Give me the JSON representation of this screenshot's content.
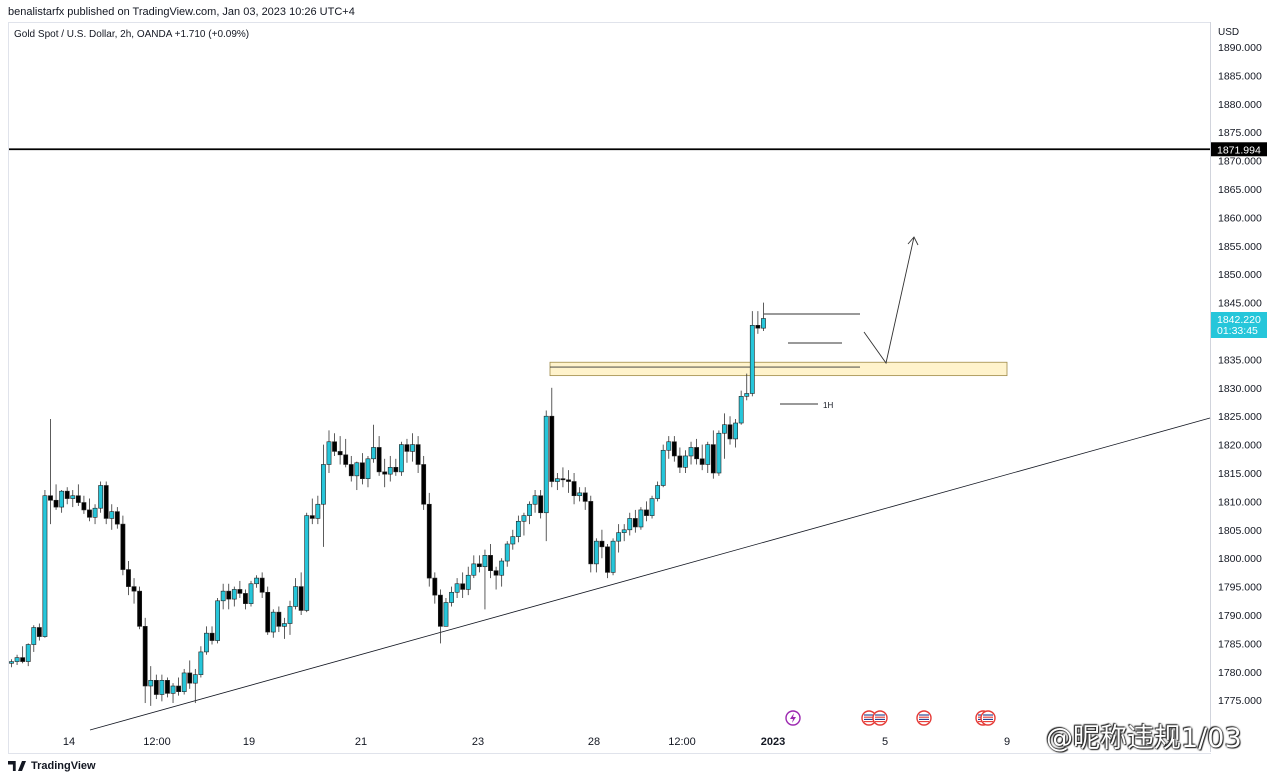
{
  "header": "benalistarfx published on TradingView.com, Jan 03, 2023 10:26 UTC+4",
  "symbol_line": "Gold Spot / U.S. Dollar, 2h, OANDA  +1.710 (+0.09%)",
  "axis_currency": "USD",
  "footer_brand": "TradingView",
  "watermark": "@昵称违规1/03",
  "colors": {
    "up": "#26c6da",
    "down": "#000000",
    "price_tag_bg": "#26c6da",
    "level_tag_bg": "#000000",
    "zone_fill": "#fff3cc",
    "zone_border": "#9e8a4a"
  },
  "chart_data": {
    "type": "candlestick",
    "title": "Gold Spot / U.S. Dollar, 2h, OANDA",
    "change_label": "+1.710 (+0.09%)",
    "ylim": [
      1771.5,
      1893.5
    ],
    "price_ticks": [
      "1890.000",
      "1885.000",
      "1880.000",
      "1875.000",
      "1870.000",
      "1865.000",
      "1860.000",
      "1855.000",
      "1850.000",
      "1845.000",
      "1840.000",
      "1835.000",
      "1830.000",
      "1825.000",
      "1820.000",
      "1815.000",
      "1810.000",
      "1805.000",
      "1800.000",
      "1795.000",
      "1790.000",
      "1785.000",
      "1780.000",
      "1775.000"
    ],
    "time_ticks": [
      "14",
      "12:00",
      "19",
      "21",
      "23",
      "28",
      "12:00",
      "2023",
      "5",
      "9"
    ],
    "last_price": "1842.220",
    "countdown": "01:33:45",
    "horizontal_level": "1871.994",
    "annotation_label": "1H",
    "event_icons": [
      "lightning-icon",
      "us-flag-icon",
      "us-flag-icon",
      "us-flag-icon",
      "us-flag-icon",
      "us-flag-icon"
    ],
    "candles": [
      [
        1781.5,
        1782.2,
        1780.8,
        1781.8
      ],
      [
        1781.8,
        1783.0,
        1781.2,
        1782.5
      ],
      [
        1782.5,
        1784.5,
        1781.5,
        1781.8
      ],
      [
        1781.8,
        1785.0,
        1781.0,
        1784.8
      ],
      [
        1784.8,
        1788.2,
        1783.5,
        1787.8
      ],
      [
        1787.8,
        1788.5,
        1785.5,
        1786.2
      ],
      [
        1786.2,
        1812.0,
        1786.0,
        1811.0
      ],
      [
        1811.0,
        1824.5,
        1806.0,
        1810.2
      ],
      [
        1810.2,
        1813.0,
        1808.5,
        1809.0
      ],
      [
        1809.0,
        1812.0,
        1808.0,
        1811.8
      ],
      [
        1811.8,
        1812.5,
        1809.5,
        1810.5
      ],
      [
        1810.5,
        1812.0,
        1809.0,
        1811.0
      ],
      [
        1811.0,
        1813.0,
        1809.2,
        1809.8
      ],
      [
        1809.8,
        1811.0,
        1807.8,
        1808.5
      ],
      [
        1808.5,
        1810.5,
        1806.5,
        1807.2
      ],
      [
        1807.2,
        1809.5,
        1806.0,
        1808.8
      ],
      [
        1808.8,
        1813.5,
        1808.0,
        1812.8
      ],
      [
        1812.8,
        1813.5,
        1806.0,
        1807.0
      ],
      [
        1807.0,
        1809.5,
        1805.0,
        1808.2
      ],
      [
        1808.2,
        1809.0,
        1805.2,
        1806.0
      ],
      [
        1806.0,
        1807.5,
        1797.0,
        1798.0
      ],
      [
        1798.0,
        1799.5,
        1793.5,
        1795.0
      ],
      [
        1795.0,
        1796.5,
        1792.0,
        1794.2
      ],
      [
        1794.2,
        1795.0,
        1787.5,
        1788.0
      ],
      [
        1788.0,
        1789.5,
        1774.5,
        1777.5
      ],
      [
        1777.5,
        1781.0,
        1774.0,
        1778.5
      ],
      [
        1778.5,
        1779.5,
        1775.2,
        1776.0
      ],
      [
        1776.0,
        1779.5,
        1774.8,
        1778.5
      ],
      [
        1778.5,
        1779.0,
        1775.5,
        1776.2
      ],
      [
        1776.2,
        1778.0,
        1774.5,
        1777.5
      ],
      [
        1777.5,
        1779.0,
        1775.8,
        1776.5
      ],
      [
        1776.5,
        1780.5,
        1776.0,
        1779.8
      ],
      [
        1779.8,
        1782.0,
        1777.0,
        1778.0
      ],
      [
        1778.0,
        1780.5,
        1774.5,
        1779.5
      ],
      [
        1779.5,
        1784.5,
        1779.0,
        1783.5
      ],
      [
        1783.5,
        1788.0,
        1783.0,
        1786.8
      ],
      [
        1786.8,
        1788.0,
        1784.8,
        1785.5
      ],
      [
        1785.5,
        1793.0,
        1785.0,
        1792.5
      ],
      [
        1792.5,
        1795.5,
        1791.0,
        1794.2
      ],
      [
        1794.2,
        1795.5,
        1791.0,
        1792.8
      ],
      [
        1792.8,
        1795.0,
        1791.5,
        1794.5
      ],
      [
        1794.5,
        1796.0,
        1793.0,
        1793.8
      ],
      [
        1793.8,
        1794.5,
        1791.0,
        1792.0
      ],
      [
        1792.0,
        1796.0,
        1791.5,
        1795.5
      ],
      [
        1795.5,
        1797.0,
        1794.8,
        1796.5
      ],
      [
        1796.5,
        1797.5,
        1793.0,
        1794.0
      ],
      [
        1794.0,
        1795.0,
        1786.5,
        1787.0
      ],
      [
        1787.0,
        1791.0,
        1786.0,
        1790.5
      ],
      [
        1790.5,
        1791.5,
        1787.0,
        1788.0
      ],
      [
        1788.0,
        1789.5,
        1785.8,
        1788.5
      ],
      [
        1788.5,
        1792.5,
        1786.5,
        1791.5
      ],
      [
        1791.5,
        1796.5,
        1791.0,
        1795.0
      ],
      [
        1795.0,
        1797.5,
        1790.0,
        1790.8
      ],
      [
        1790.8,
        1808.0,
        1790.5,
        1807.5
      ],
      [
        1807.5,
        1810.5,
        1806.0,
        1807.0
      ],
      [
        1807.0,
        1811.0,
        1806.0,
        1809.5
      ],
      [
        1809.5,
        1820.0,
        1802.0,
        1816.5
      ],
      [
        1816.5,
        1822.5,
        1815.0,
        1820.5
      ],
      [
        1820.5,
        1822.0,
        1818.0,
        1818.8
      ],
      [
        1818.8,
        1821.5,
        1816.5,
        1818.2
      ],
      [
        1818.2,
        1821.0,
        1816.0,
        1816.5
      ],
      [
        1816.5,
        1818.0,
        1813.5,
        1814.5
      ],
      [
        1814.5,
        1817.0,
        1812.0,
        1816.8
      ],
      [
        1816.8,
        1818.5,
        1813.0,
        1814.0
      ],
      [
        1814.0,
        1818.0,
        1812.5,
        1817.5
      ],
      [
        1817.5,
        1823.5,
        1816.8,
        1819.5
      ],
      [
        1819.5,
        1821.5,
        1814.5,
        1815.2
      ],
      [
        1815.2,
        1817.5,
        1812.5,
        1814.8
      ],
      [
        1814.8,
        1818.0,
        1813.5,
        1816.0
      ],
      [
        1816.0,
        1817.5,
        1814.5,
        1815.2
      ],
      [
        1815.2,
        1820.5,
        1814.5,
        1820.0
      ],
      [
        1820.0,
        1821.0,
        1816.8,
        1818.8
      ],
      [
        1818.8,
        1822.0,
        1817.0,
        1820.0
      ],
      [
        1820.0,
        1821.5,
        1815.0,
        1816.5
      ],
      [
        1816.5,
        1818.0,
        1808.5,
        1809.5
      ],
      [
        1809.5,
        1811.5,
        1795.0,
        1796.5
      ],
      [
        1796.5,
        1797.5,
        1792.0,
        1793.5
      ],
      [
        1793.5,
        1794.5,
        1785.0,
        1788.0
      ],
      [
        1788.0,
        1793.0,
        1788.0,
        1792.2
      ],
      [
        1792.2,
        1795.0,
        1791.5,
        1794.0
      ],
      [
        1794.0,
        1796.5,
        1793.0,
        1795.5
      ],
      [
        1795.5,
        1797.5,
        1793.0,
        1794.5
      ],
      [
        1794.5,
        1798.5,
        1793.5,
        1797.0
      ],
      [
        1797.0,
        1800.5,
        1796.5,
        1799.0
      ],
      [
        1799.0,
        1800.5,
        1797.5,
        1798.5
      ],
      [
        1798.5,
        1801.5,
        1791.0,
        1800.5
      ],
      [
        1800.5,
        1802.5,
        1796.5,
        1797.8
      ],
      [
        1797.8,
        1798.5,
        1794.5,
        1797.0
      ],
      [
        1797.0,
        1800.0,
        1795.0,
        1799.5
      ],
      [
        1799.5,
        1803.0,
        1798.5,
        1802.5
      ],
      [
        1802.5,
        1805.0,
        1801.5,
        1803.8
      ],
      [
        1803.8,
        1807.5,
        1802.8,
        1806.5
      ],
      [
        1806.5,
        1808.0,
        1804.0,
        1807.5
      ],
      [
        1807.5,
        1810.0,
        1806.0,
        1809.5
      ],
      [
        1809.5,
        1812.0,
        1808.0,
        1811.0
      ],
      [
        1811.0,
        1812.0,
        1807.0,
        1808.0
      ],
      [
        1808.0,
        1826.0,
        1803.0,
        1825.0
      ],
      [
        1825.0,
        1830.0,
        1812.5,
        1813.5
      ],
      [
        1813.5,
        1815.0,
        1812.0,
        1814.0
      ],
      [
        1814.0,
        1816.0,
        1812.5,
        1813.8
      ],
      [
        1813.8,
        1815.5,
        1811.5,
        1813.5
      ],
      [
        1813.5,
        1815.0,
        1809.5,
        1811.0
      ],
      [
        1811.0,
        1812.5,
        1810.0,
        1811.5
      ],
      [
        1811.5,
        1812.5,
        1808.5,
        1810.0
      ],
      [
        1810.0,
        1811.0,
        1797.5,
        1799.0
      ],
      [
        1799.0,
        1803.5,
        1797.5,
        1803.0
      ],
      [
        1803.0,
        1805.0,
        1800.0,
        1802.0
      ],
      [
        1802.0,
        1802.5,
        1796.5,
        1797.5
      ],
      [
        1797.5,
        1803.5,
        1797.0,
        1803.0
      ],
      [
        1803.0,
        1806.0,
        1801.0,
        1804.5
      ],
      [
        1804.5,
        1806.0,
        1803.0,
        1805.0
      ],
      [
        1805.0,
        1808.0,
        1804.0,
        1807.0
      ],
      [
        1807.0,
        1808.5,
        1804.5,
        1805.5
      ],
      [
        1805.5,
        1809.0,
        1805.0,
        1808.5
      ],
      [
        1808.5,
        1810.0,
        1806.5,
        1807.5
      ],
      [
        1807.5,
        1811.0,
        1807.0,
        1810.5
      ],
      [
        1810.5,
        1813.5,
        1810.0,
        1812.8
      ],
      [
        1812.8,
        1820.0,
        1812.5,
        1819.0
      ],
      [
        1819.0,
        1821.5,
        1817.5,
        1820.5
      ],
      [
        1820.5,
        1821.5,
        1817.0,
        1818.0
      ],
      [
        1818.0,
        1819.5,
        1815.0,
        1816.0
      ],
      [
        1816.0,
        1819.0,
        1815.0,
        1818.0
      ],
      [
        1818.0,
        1820.5,
        1816.5,
        1819.5
      ],
      [
        1819.5,
        1821.0,
        1816.5,
        1817.5
      ],
      [
        1817.5,
        1820.0,
        1815.5,
        1816.5
      ],
      [
        1816.5,
        1820.5,
        1815.0,
        1820.0
      ],
      [
        1820.0,
        1822.5,
        1814.0,
        1815.0
      ],
      [
        1815.0,
        1822.5,
        1814.5,
        1822.0
      ],
      [
        1822.0,
        1825.5,
        1817.5,
        1823.5
      ],
      [
        1823.5,
        1825.0,
        1820.0,
        1821.0
      ],
      [
        1821.0,
        1824.5,
        1819.5,
        1823.8
      ],
      [
        1823.8,
        1829.5,
        1823.5,
        1828.5
      ],
      [
        1828.5,
        1832.5,
        1827.8,
        1829.0
      ],
      [
        1829.0,
        1843.5,
        1828.5,
        1841.0
      ],
      [
        1841.0,
        1843.5,
        1839.5,
        1840.5
      ],
      [
        1840.5,
        1845.0,
        1840.0,
        1842.2
      ]
    ]
  }
}
